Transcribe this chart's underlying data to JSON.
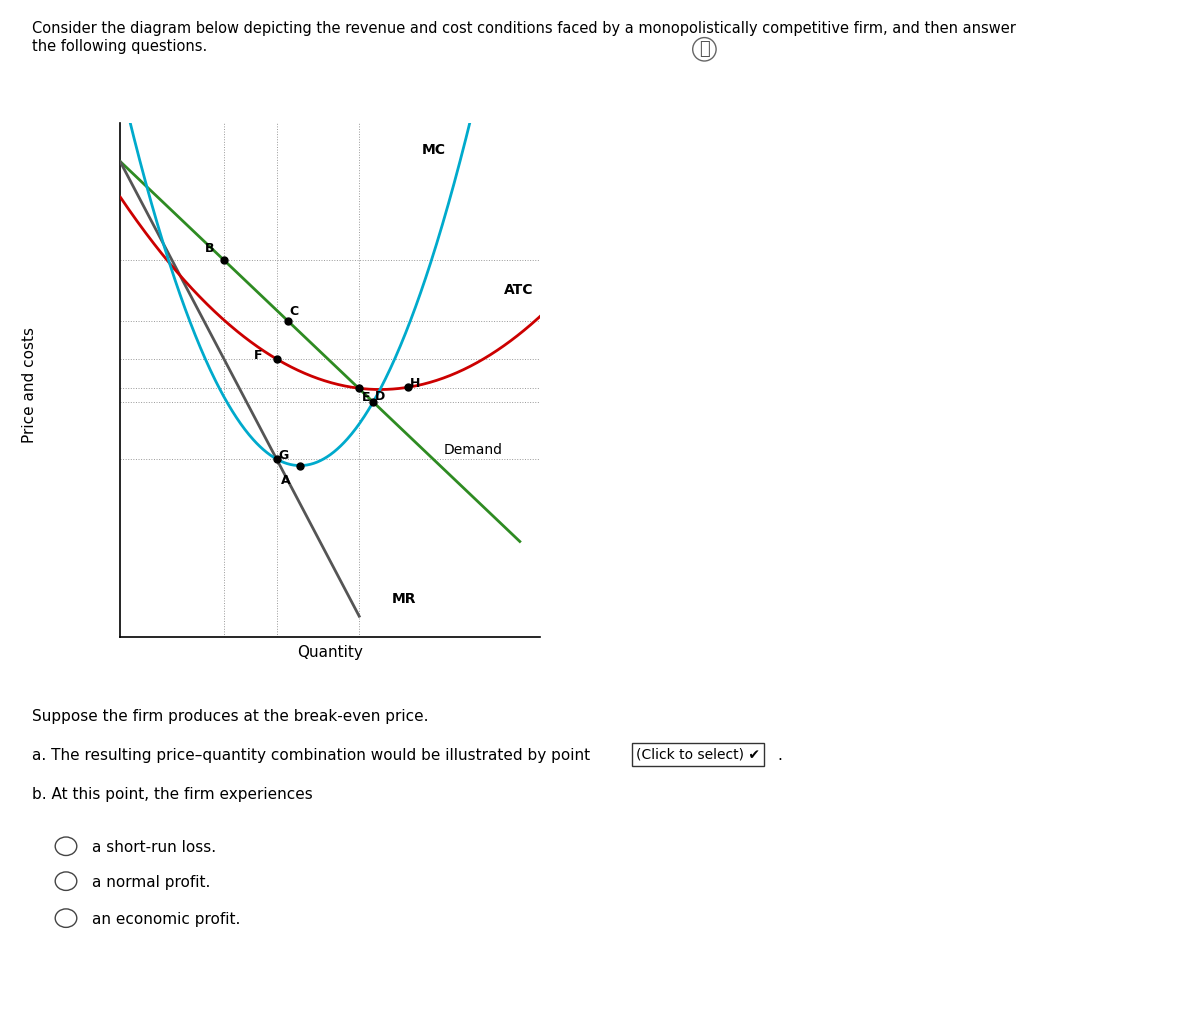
{
  "header_line1": "Consider the diagram below depicting the revenue and cost conditions faced by a monopolistically competitive firm, and then answer",
  "header_line2": "the following questions.",
  "ylabel": "Price and costs",
  "xlabel": "Quantity",
  "curve_colors": {
    "demand": "#2e8b22",
    "ATC": "#cc0000",
    "MC": "#00aacc",
    "MR": "#555555"
  },
  "question_text1": "Suppose the firm produces at the break-even price.",
  "question_a": "a. The resulting price–quantity combination would be illustrated by point",
  "dropdown_text": "(Click to select) ✔",
  "question_b": "b. At this point, the firm experiences",
  "options": [
    "a short-run loss.",
    "a normal profit.",
    "an economic profit."
  ],
  "info_icon": "ⓘ",
  "bg_color": "#ffffff",
  "text_color": "#000000",
  "grid_color": "#999999",
  "axis_color": "#000000"
}
